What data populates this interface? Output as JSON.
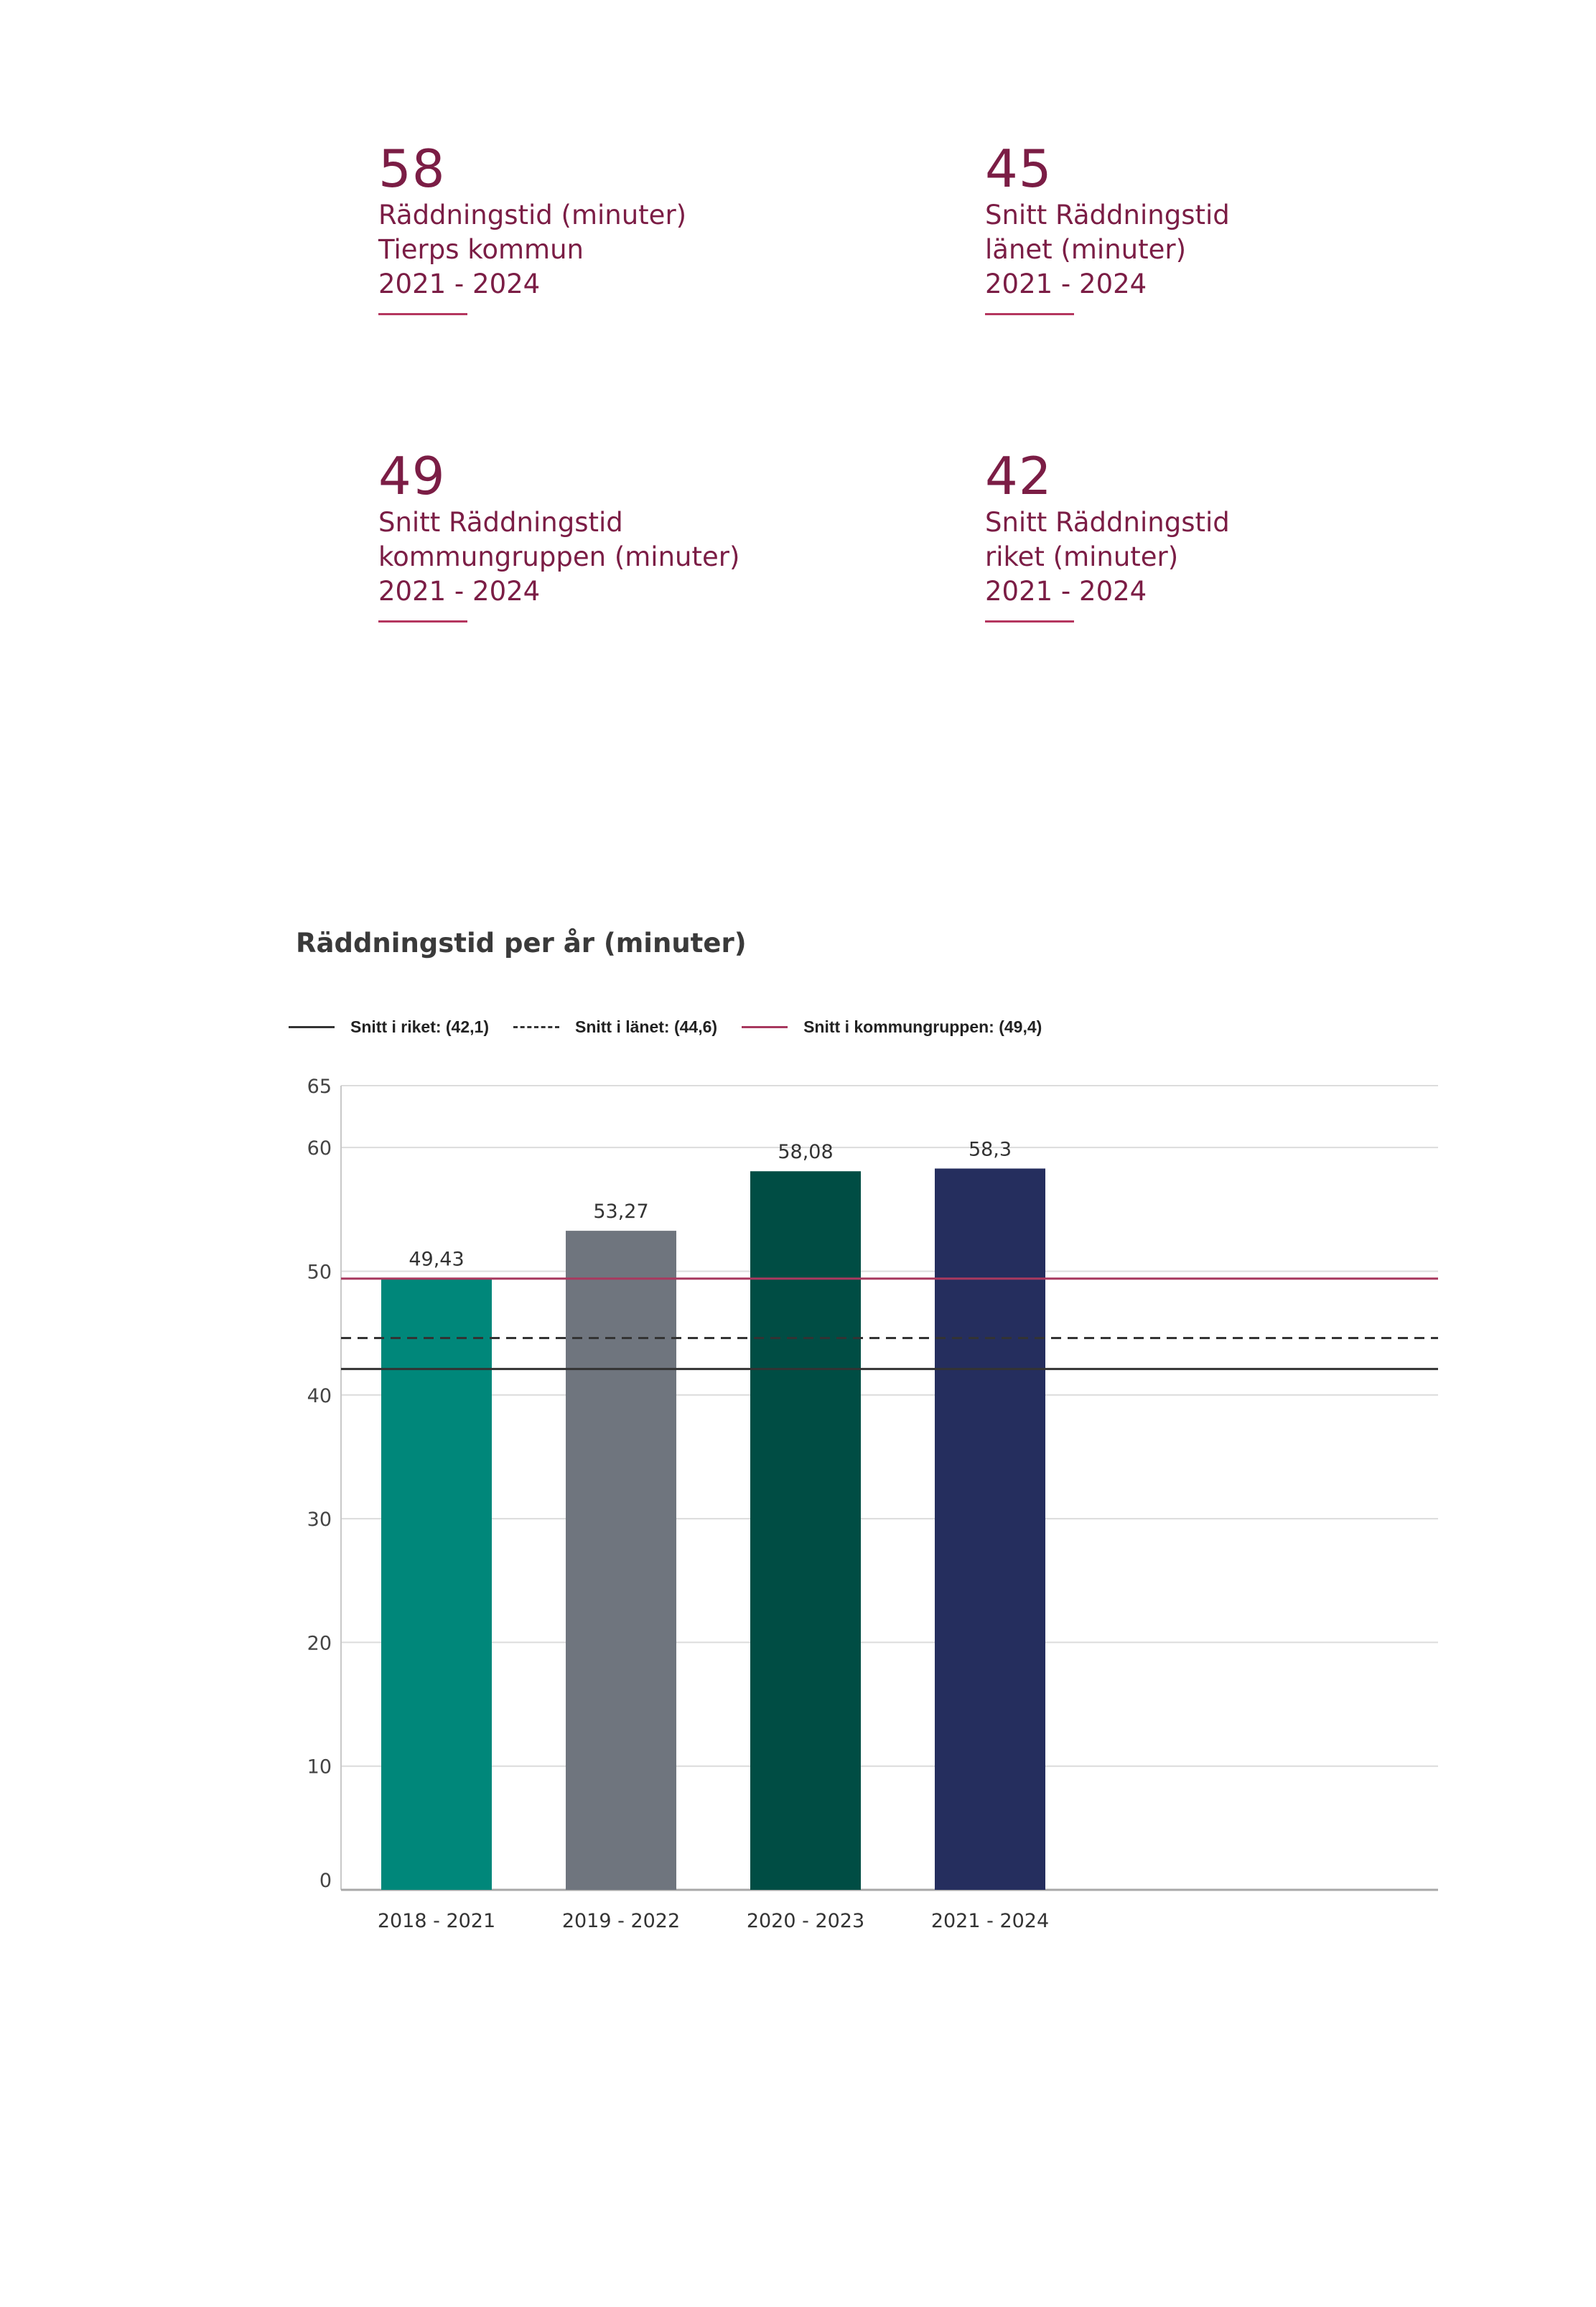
{
  "stats": [
    {
      "value": "58",
      "lines": [
        "Räddningstid (minuter)",
        "Tierps kommun",
        "2021 - 2024"
      ]
    },
    {
      "value": "45",
      "lines": [
        "Snitt Räddningstid",
        "länet (minuter)",
        "2021 - 2024"
      ]
    },
    {
      "value": "49",
      "lines": [
        "Snitt Räddningstid",
        "kommungruppen (minuter)",
        "2021 - 2024"
      ]
    },
    {
      "value": "42",
      "lines": [
        "Snitt Räddningstid",
        "riket (minuter)",
        "2021 - 2024"
      ]
    }
  ],
  "colors": {
    "accent": "#7b1d45",
    "bars": [
      "#00877a",
      "#6f757e",
      "#004d44",
      "#252e5e"
    ],
    "riket_line": "#333333",
    "lanet_line": "#333333",
    "kommungrupp_line": "#a8395f"
  },
  "chart_data": {
    "type": "bar",
    "title": "Räddningstid per år (minuter)",
    "categories": [
      "2018 - 2021",
      "2019 - 2022",
      "2020 - 2023",
      "2021 - 2024"
    ],
    "values": [
      49.43,
      53.27,
      58.08,
      58.3
    ],
    "value_labels": [
      "49,43",
      "53,27",
      "58,08",
      "58,3"
    ],
    "ylim": [
      0,
      65
    ],
    "yticks": [
      0,
      10,
      20,
      30,
      40,
      50,
      60,
      65
    ],
    "grid": true,
    "legend_position": "top-left",
    "reference_lines": [
      {
        "label": "Snitt i riket: (42,1)",
        "value": 42.1,
        "style": "solid"
      },
      {
        "label": "Snitt i länet: (44,6)",
        "value": 44.6,
        "style": "dashed"
      },
      {
        "label": "Snitt i kommungruppen: (49,4)",
        "value": 49.4,
        "style": "solid"
      }
    ]
  }
}
